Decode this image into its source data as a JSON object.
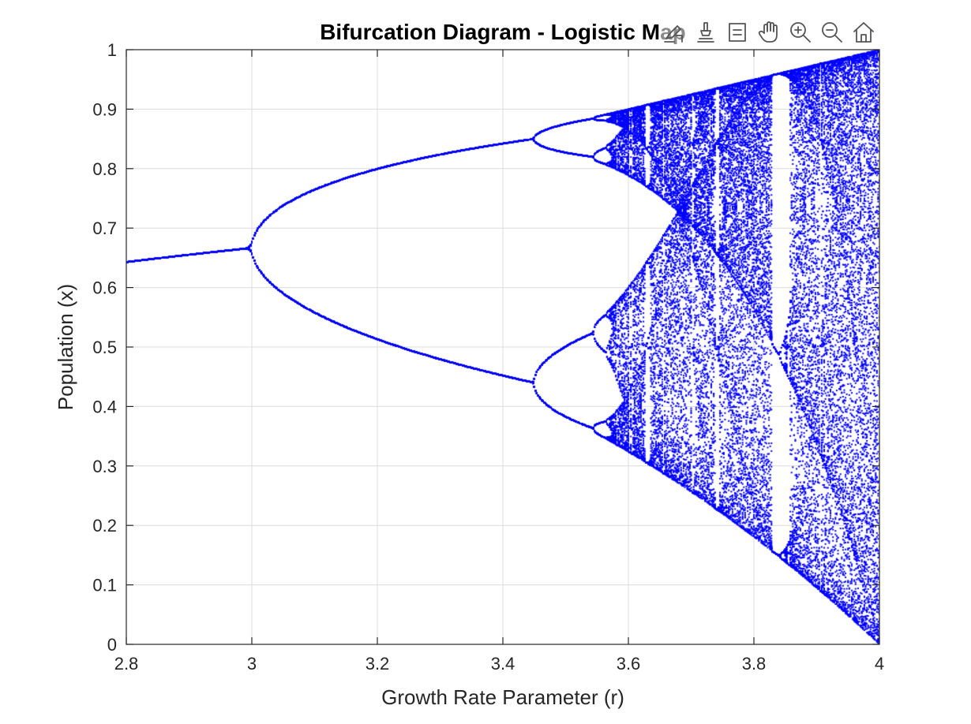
{
  "colors": {
    "series": "#0000ff",
    "grid": "#dcdcdc",
    "axis": "#262626",
    "background": "#ffffff"
  },
  "toolbar": {
    "icons": [
      "brush-icon",
      "data-tips-icon",
      "legend-icon",
      "pan-hand-icon",
      "zoom-in-icon",
      "zoom-out-icon",
      "home-icon"
    ]
  },
  "chart_data": {
    "type": "scatter",
    "title": "Bifurcation Diagram - Logistic Map",
    "xlabel": "Growth Rate Parameter (r)",
    "ylabel": "Population (x)",
    "xlim": [
      2.8,
      4.0
    ],
    "ylim": [
      0,
      1
    ],
    "x_ticks": [
      2.8,
      3.0,
      3.2,
      3.4,
      3.6,
      3.8,
      4.0
    ],
    "x_tick_labels": [
      "2.8",
      "3",
      "3.2",
      "3.4",
      "3.6",
      "3.8",
      "4"
    ],
    "y_ticks": [
      0,
      0.1,
      0.2,
      0.3,
      0.4,
      0.5,
      0.6,
      0.7,
      0.8,
      0.9,
      1.0
    ],
    "y_tick_labels": [
      "0",
      "0.1",
      "0.2",
      "0.3",
      "0.4",
      "0.5",
      "0.6",
      "0.7",
      "0.8",
      "0.9",
      "1"
    ],
    "grid": true,
    "legend": "none",
    "marker": "dot",
    "series": [
      {
        "name": "",
        "description": "x values after transient iterations of x(n+1) = r·x(n)·(1 − x(n)) for each r",
        "r_start": 2.8,
        "r_end": 4.0,
        "r_step": 0.002,
        "x0": 0.5,
        "transient_iterations": 500,
        "plotted_iterations": 150,
        "features": {
          "first_bifurcation_r": 3.0,
          "period4_r": 3.449,
          "period8_r": 3.544,
          "chaos_onset_r": 3.5699,
          "period3_window_r": [
            3.8284,
            3.857
          ],
          "value_at_r_2_8": 0.6429,
          "range_at_r_4": [
            0,
            1
          ]
        }
      }
    ]
  }
}
